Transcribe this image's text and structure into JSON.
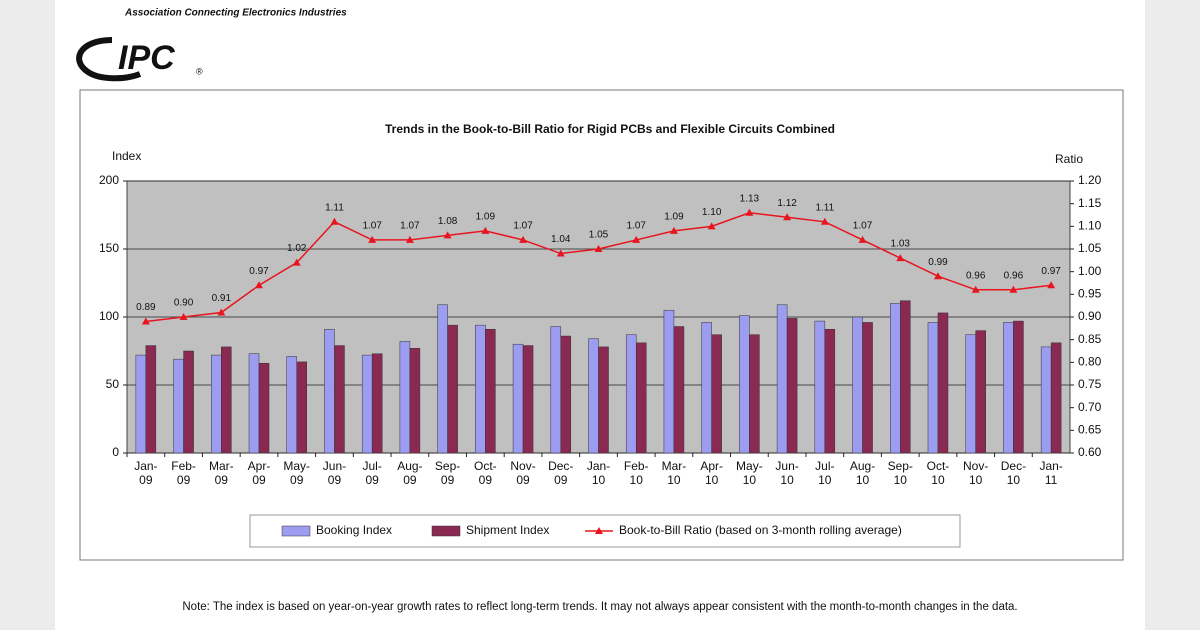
{
  "header": {
    "tagline": "Association Connecting Electronics Industries",
    "logo": "IPC",
    "logo_mark": "®"
  },
  "chart_data": {
    "type": "bar_line",
    "title": "Trends in the Book-to-Bill Ratio for Rigid PCBs and Flexible Circuits Combined",
    "y_label": "Index",
    "y2_label": "Ratio",
    "categories": [
      "Jan-09",
      "Feb-09",
      "Mar-09",
      "Apr-09",
      "May-09",
      "Jun-09",
      "Jul-09",
      "Aug-09",
      "Sep-09",
      "Oct-09",
      "Nov-09",
      "Dec-09",
      "Jan-10",
      "Feb-10",
      "Mar-10",
      "Apr-10",
      "May-10",
      "Jun-10",
      "Jul-10",
      "Aug-10",
      "Sep-10",
      "Oct-10",
      "Nov-10",
      "Dec-10",
      "Jan-11"
    ],
    "series": [
      {
        "name": "Booking Index",
        "color": "#9c9cf0",
        "kind": "bar",
        "values": [
          72,
          69,
          72,
          73,
          71,
          91,
          72,
          82,
          109,
          94,
          80,
          93,
          84,
          87,
          105,
          96,
          101,
          109,
          97,
          100,
          110,
          96,
          87,
          96,
          78
        ]
      },
      {
        "name": "Shipment Index",
        "color": "#8a2a52",
        "kind": "bar",
        "values": [
          79,
          75,
          78,
          66,
          67,
          79,
          73,
          77,
          94,
          91,
          79,
          86,
          78,
          81,
          93,
          87,
          87,
          99,
          91,
          96,
          112,
          103,
          90,
          97,
          81
        ]
      },
      {
        "name": "Book-to-Bill Ratio (based on 3-month rolling average)",
        "color": "#e8141e",
        "kind": "line",
        "axis": "y2",
        "values": [
          0.89,
          0.9,
          0.91,
          0.97,
          1.02,
          1.11,
          1.07,
          1.07,
          1.08,
          1.09,
          1.07,
          1.04,
          1.05,
          1.07,
          1.09,
          1.1,
          1.13,
          1.12,
          1.11,
          1.07,
          1.03,
          0.99,
          0.96,
          0.96,
          0.97
        ],
        "value_labels": [
          "0.89",
          "0.90",
          "0.91",
          "0.97",
          "1.02",
          "1.11",
          "1.07",
          "1.07",
          "1.08",
          "1.09",
          "1.07",
          "1.04",
          "1.05",
          "1.07",
          "1.09",
          "1.10",
          "1.13",
          "1.12",
          "1.11",
          "1.07",
          "1.03",
          "0.99",
          "0.96",
          "0.96",
          "0.97"
        ]
      }
    ],
    "ylim": [
      0,
      200
    ],
    "yticks": [
      0,
      50,
      100,
      150,
      200
    ],
    "y2lim": [
      0.6,
      1.2
    ],
    "y2ticks": [
      {
        "value": 0.6,
        "label": "0.60"
      },
      0.65,
      {
        "value": 0.7,
        "label": "0.70"
      },
      0.75,
      {
        "value": 0.8,
        "label": "0.80"
      },
      0.85,
      {
        "value": 0.9,
        "label": "0.90"
      },
      0.95,
      {
        "value": 1.0,
        "label": "1.00"
      },
      1.05,
      {
        "value": 1.1,
        "label": "1.10"
      },
      1.15,
      {
        "value": 1.2,
        "label": "1.20"
      }
    ],
    "grid": true,
    "plot_background": "#c0c0c0",
    "legend": "bottom"
  },
  "note": "Note: The index is based on year-on-year growth rates to reflect long-term trends. It may not always appear consistent with the month-to-month changes in the data."
}
